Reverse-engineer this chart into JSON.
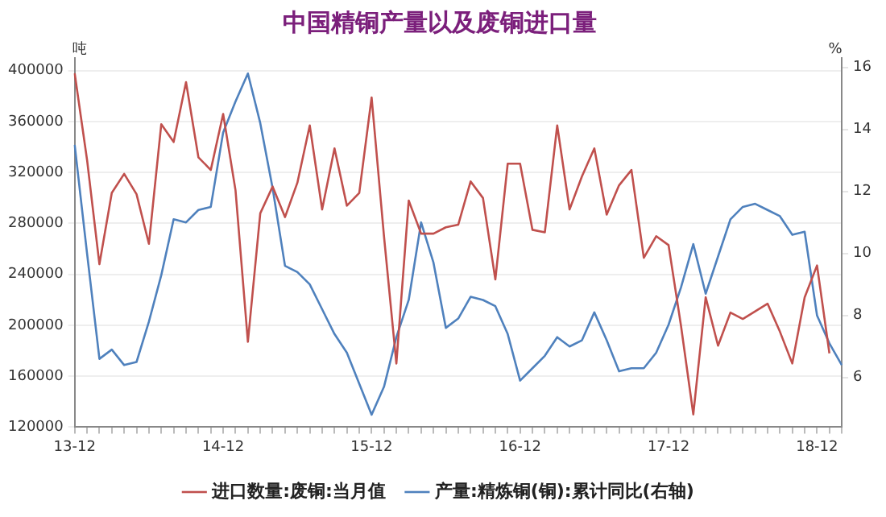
{
  "chart_data": {
    "type": "line",
    "title": "中国精铜产量以及废铜进口量",
    "ylabel": "吨",
    "y2label": "%",
    "categories": [
      "13-12",
      null,
      null,
      null,
      null,
      null,
      null,
      null,
      null,
      null,
      null,
      null,
      "14-12",
      null,
      null,
      null,
      null,
      null,
      null,
      null,
      null,
      null,
      null,
      null,
      "15-12",
      null,
      null,
      null,
      null,
      null,
      null,
      null,
      null,
      null,
      null,
      null,
      "16-12",
      null,
      null,
      null,
      null,
      null,
      null,
      null,
      null,
      null,
      null,
      null,
      "17-12",
      null,
      null,
      null,
      null,
      null,
      null,
      null,
      null,
      null,
      null,
      null,
      "18-12",
      null,
      null
    ],
    "series": [
      {
        "name": "进口数量:废铜:当月值",
        "color": "#c0504d",
        "values": [
          398000,
          330000,
          248000,
          304000,
          319000,
          303000,
          264000,
          358000,
          344000,
          391000,
          332000,
          322000,
          366000,
          306000,
          187000,
          288000,
          309000,
          285000,
          312000,
          357000,
          291000,
          339000,
          294000,
          304000,
          379000,
          270000,
          170000,
          298000,
          272000,
          272000,
          277000,
          279000,
          313000,
          300000,
          236000,
          327000,
          327000,
          275000,
          273000,
          357000,
          291000,
          317000,
          339000,
          287000,
          310000,
          322000,
          253000,
          270000,
          263000,
          200000,
          130000,
          222000,
          184000,
          210000,
          205000,
          211000,
          217000,
          195000,
          170000,
          222000,
          247000,
          178000,
          null
        ]
      },
      {
        "name": "产量:精炼铜(铜):累计同比(右轴)",
        "color": "#4f81bd",
        "axis": "y2",
        "values": [
          13.5,
          10,
          6.6,
          6.9,
          6.4,
          6.5,
          7.8,
          9.3,
          11.1,
          11,
          11.4,
          11.5,
          13.9,
          14.9,
          15.8,
          14.2,
          12.1,
          9.6,
          9.4,
          9,
          8.2,
          7.4,
          6.8,
          5.8,
          4.8,
          5.7,
          7.3,
          8.5,
          11,
          9.7,
          7.6,
          7.9,
          8.6,
          8.5,
          8.3,
          7.4,
          5.9,
          6.3,
          6.7,
          7.3,
          7,
          7.2,
          8.1,
          7.2,
          6.2,
          6.3,
          6.3,
          6.8,
          7.7,
          8.9,
          10.3,
          8.7,
          9.9,
          11.1,
          11.5,
          11.6,
          11.4,
          11.2,
          10.6,
          10.7,
          8,
          7.1,
          6.4
        ]
      }
    ],
    "ylim": [
      120000,
      410000
    ],
    "yticks": [
      120000,
      160000,
      200000,
      240000,
      280000,
      320000,
      360000,
      400000
    ],
    "y2lim": [
      4.4,
      16.3
    ],
    "y2ticks": [
      6,
      8,
      10,
      12,
      14,
      16
    ],
    "grid": "y",
    "legend": "bottom",
    "marker": "none",
    "line_style": "solid"
  }
}
